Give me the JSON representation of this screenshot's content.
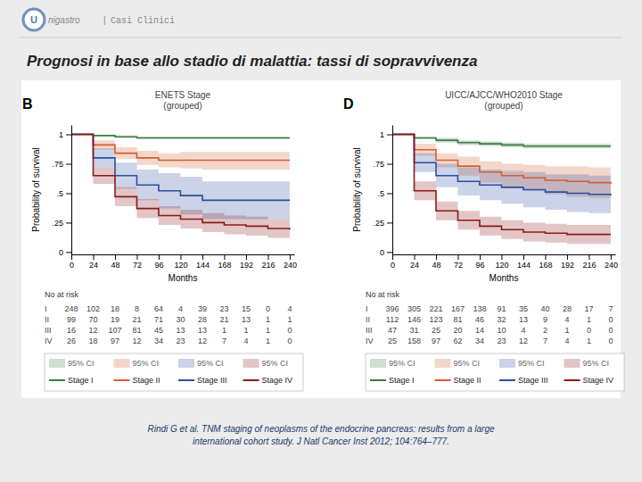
{
  "title": "Prognosi in base allo stadio di malattia: tassi di sopravvivenza",
  "header": [
    "U",
    "nigastro",
    "|",
    "Casi Clinici"
  ],
  "citation": "Rindi G et al.  TNM staging of neoplasms of the endocrine pancreas: results from a large\ninternational cohort study. J Natl Cancer Inst 2012; 104:764–777.",
  "chart_data": [
    {
      "type": "step",
      "panel_label": "B",
      "title": "ENETS Stage\n(grouped)",
      "x_label": "Months",
      "y_label": "Probability of survival",
      "x": [
        0,
        24,
        48,
        72,
        96,
        120,
        144,
        168,
        192,
        216,
        240
      ],
      "xlim": [
        0,
        245
      ],
      "ylim": [
        -0.02,
        1.08
      ],
      "xticks": [
        0,
        24,
        48,
        72,
        96,
        120,
        144,
        168,
        192,
        216,
        240
      ],
      "yticks": [
        0,
        {
          "value": 0.25,
          "label": ".25"
        },
        {
          "value": 0.5,
          "label": ".5"
        },
        {
          "value": 0.75,
          "label": ".75"
        },
        1
      ],
      "legend": "bottom",
      "ci_label": "95% CI",
      "series": [
        {
          "name": "Stage I",
          "color": "#3a7d44",
          "values": [
            1.0,
            0.99,
            0.98,
            0.97,
            0.97,
            0.97,
            0.97,
            0.97,
            0.97,
            0.97,
            0.97
          ],
          "y_lo": [
            1.0,
            0.985,
            0.97,
            0.96,
            0.96,
            0.96,
            0.96,
            0.96,
            0.96,
            0.96,
            0.96
          ],
          "y_hi": [
            1.0,
            0.995,
            0.99,
            0.98,
            0.98,
            0.98,
            0.98,
            0.98,
            0.98,
            0.98,
            0.98
          ]
        },
        {
          "name": "Stage II",
          "color": "#d45f30",
          "values": [
            1.0,
            0.91,
            0.84,
            0.8,
            0.78,
            0.78,
            0.78,
            0.78,
            0.78,
            0.78,
            0.78
          ],
          "y_lo": [
            1.0,
            0.87,
            0.79,
            0.74,
            0.72,
            0.71,
            0.7,
            0.7,
            0.7,
            0.7,
            0.7
          ],
          "y_hi": [
            1.0,
            0.95,
            0.89,
            0.86,
            0.84,
            0.85,
            0.85,
            0.85,
            0.85,
            0.85,
            0.85
          ]
        },
        {
          "name": "Stage III",
          "color": "#2b4f9e",
          "values": [
            1.0,
            0.8,
            0.65,
            0.57,
            0.52,
            0.48,
            0.44,
            0.44,
            0.44,
            0.44,
            0.44
          ],
          "y_lo": [
            1.0,
            0.72,
            0.54,
            0.44,
            0.37,
            0.32,
            0.28,
            0.28,
            0.28,
            0.28,
            0.28
          ],
          "y_hi": [
            1.0,
            0.88,
            0.76,
            0.7,
            0.67,
            0.64,
            0.6,
            0.6,
            0.6,
            0.6,
            0.6
          ]
        },
        {
          "name": "Stage IV",
          "color": "#8b1a1a",
          "values": [
            1.0,
            0.65,
            0.47,
            0.37,
            0.31,
            0.28,
            0.25,
            0.23,
            0.22,
            0.2,
            0.19
          ],
          "y_lo": [
            1.0,
            0.58,
            0.39,
            0.29,
            0.23,
            0.2,
            0.17,
            0.15,
            0.14,
            0.12,
            0.1
          ],
          "y_hi": [
            1.0,
            0.72,
            0.55,
            0.45,
            0.39,
            0.36,
            0.33,
            0.31,
            0.3,
            0.28,
            0.27
          ]
        }
      ],
      "risk_title": "No at risk",
      "risk_rows": [
        "I",
        "II",
        "III",
        "IV"
      ],
      "risk_values": [
        [
          248,
          102,
          18,
          8,
          64,
          4,
          39,
          23,
          15,
          0,
          4
        ],
        [
          99,
          70,
          19,
          21,
          71,
          30,
          28,
          21,
          13,
          1,
          1
        ],
        [
          16,
          12,
          107,
          81,
          45,
          13,
          13,
          1,
          1,
          1,
          0
        ],
        [
          26,
          18,
          97,
          12,
          34,
          23,
          12,
          7,
          4,
          1,
          0
        ]
      ]
    },
    {
      "type": "step",
      "panel_label": "D",
      "title": "UICC/AJCC/WHO2010 Stage\n(grouped)",
      "x_label": "Months",
      "y_label": "Probability of survival",
      "x": [
        0,
        24,
        48,
        72,
        96,
        120,
        144,
        168,
        192,
        216,
        240
      ],
      "xlim": [
        0,
        245
      ],
      "ylim": [
        -0.02,
        1.08
      ],
      "xticks": [
        0,
        24,
        48,
        72,
        96,
        120,
        144,
        168,
        192,
        216,
        240
      ],
      "yticks": [
        0,
        {
          "value": 0.25,
          "label": ".25"
        },
        {
          "value": 0.5,
          "label": ".5"
        },
        {
          "value": 0.75,
          "label": ".75"
        },
        1
      ],
      "legend": "bottom",
      "ci_label": "95% CI",
      "series": [
        {
          "name": "Stage I",
          "color": "#3a7d44",
          "values": [
            1.0,
            0.97,
            0.95,
            0.93,
            0.92,
            0.91,
            0.9,
            0.9,
            0.9,
            0.9,
            0.9
          ],
          "y_lo": [
            1.0,
            0.96,
            0.93,
            0.91,
            0.9,
            0.89,
            0.88,
            0.88,
            0.88,
            0.88,
            0.88
          ],
          "y_hi": [
            1.0,
            0.98,
            0.97,
            0.95,
            0.94,
            0.93,
            0.92,
            0.92,
            0.92,
            0.92,
            0.92
          ]
        },
        {
          "name": "Stage II",
          "color": "#d45f30",
          "values": [
            1.0,
            0.87,
            0.78,
            0.73,
            0.68,
            0.65,
            0.63,
            0.61,
            0.6,
            0.59,
            0.58
          ],
          "y_lo": [
            1.0,
            0.82,
            0.72,
            0.65,
            0.59,
            0.55,
            0.52,
            0.49,
            0.47,
            0.46,
            0.44
          ],
          "y_hi": [
            1.0,
            0.92,
            0.84,
            0.81,
            0.77,
            0.75,
            0.74,
            0.73,
            0.73,
            0.72,
            0.72
          ]
        },
        {
          "name": "Stage III",
          "color": "#2b4f9e",
          "values": [
            1.0,
            0.76,
            0.65,
            0.6,
            0.57,
            0.55,
            0.53,
            0.51,
            0.5,
            0.49,
            0.48
          ],
          "y_lo": [
            1.0,
            0.68,
            0.55,
            0.48,
            0.44,
            0.41,
            0.38,
            0.36,
            0.34,
            0.33,
            0.32
          ],
          "y_hi": [
            1.0,
            0.84,
            0.75,
            0.72,
            0.7,
            0.69,
            0.68,
            0.66,
            0.66,
            0.65,
            0.64
          ]
        },
        {
          "name": "Stage IV",
          "color": "#8b1a1a",
          "values": [
            1.0,
            0.52,
            0.35,
            0.27,
            0.22,
            0.19,
            0.17,
            0.16,
            0.15,
            0.15,
            0.15
          ],
          "y_lo": [
            1.0,
            0.44,
            0.27,
            0.19,
            0.14,
            0.11,
            0.09,
            0.08,
            0.07,
            0.07,
            0.07
          ],
          "y_hi": [
            1.0,
            0.6,
            0.43,
            0.35,
            0.3,
            0.27,
            0.25,
            0.24,
            0.23,
            0.23,
            0.23
          ]
        }
      ],
      "risk_title": "No at risk",
      "risk_rows": [
        "I",
        "II",
        "III",
        "IV"
      ],
      "risk_values": [
        [
          396,
          305,
          221,
          167,
          138,
          91,
          35,
          40,
          28,
          17,
          7
        ],
        [
          112,
          146,
          123,
          81,
          46,
          32,
          13,
          9,
          4,
          1,
          0
        ],
        [
          47,
          31,
          25,
          20,
          14,
          10,
          4,
          2,
          1,
          0,
          0
        ],
        [
          25,
          158,
          97,
          62,
          34,
          23,
          12,
          7,
          4,
          1,
          0
        ]
      ]
    }
  ]
}
